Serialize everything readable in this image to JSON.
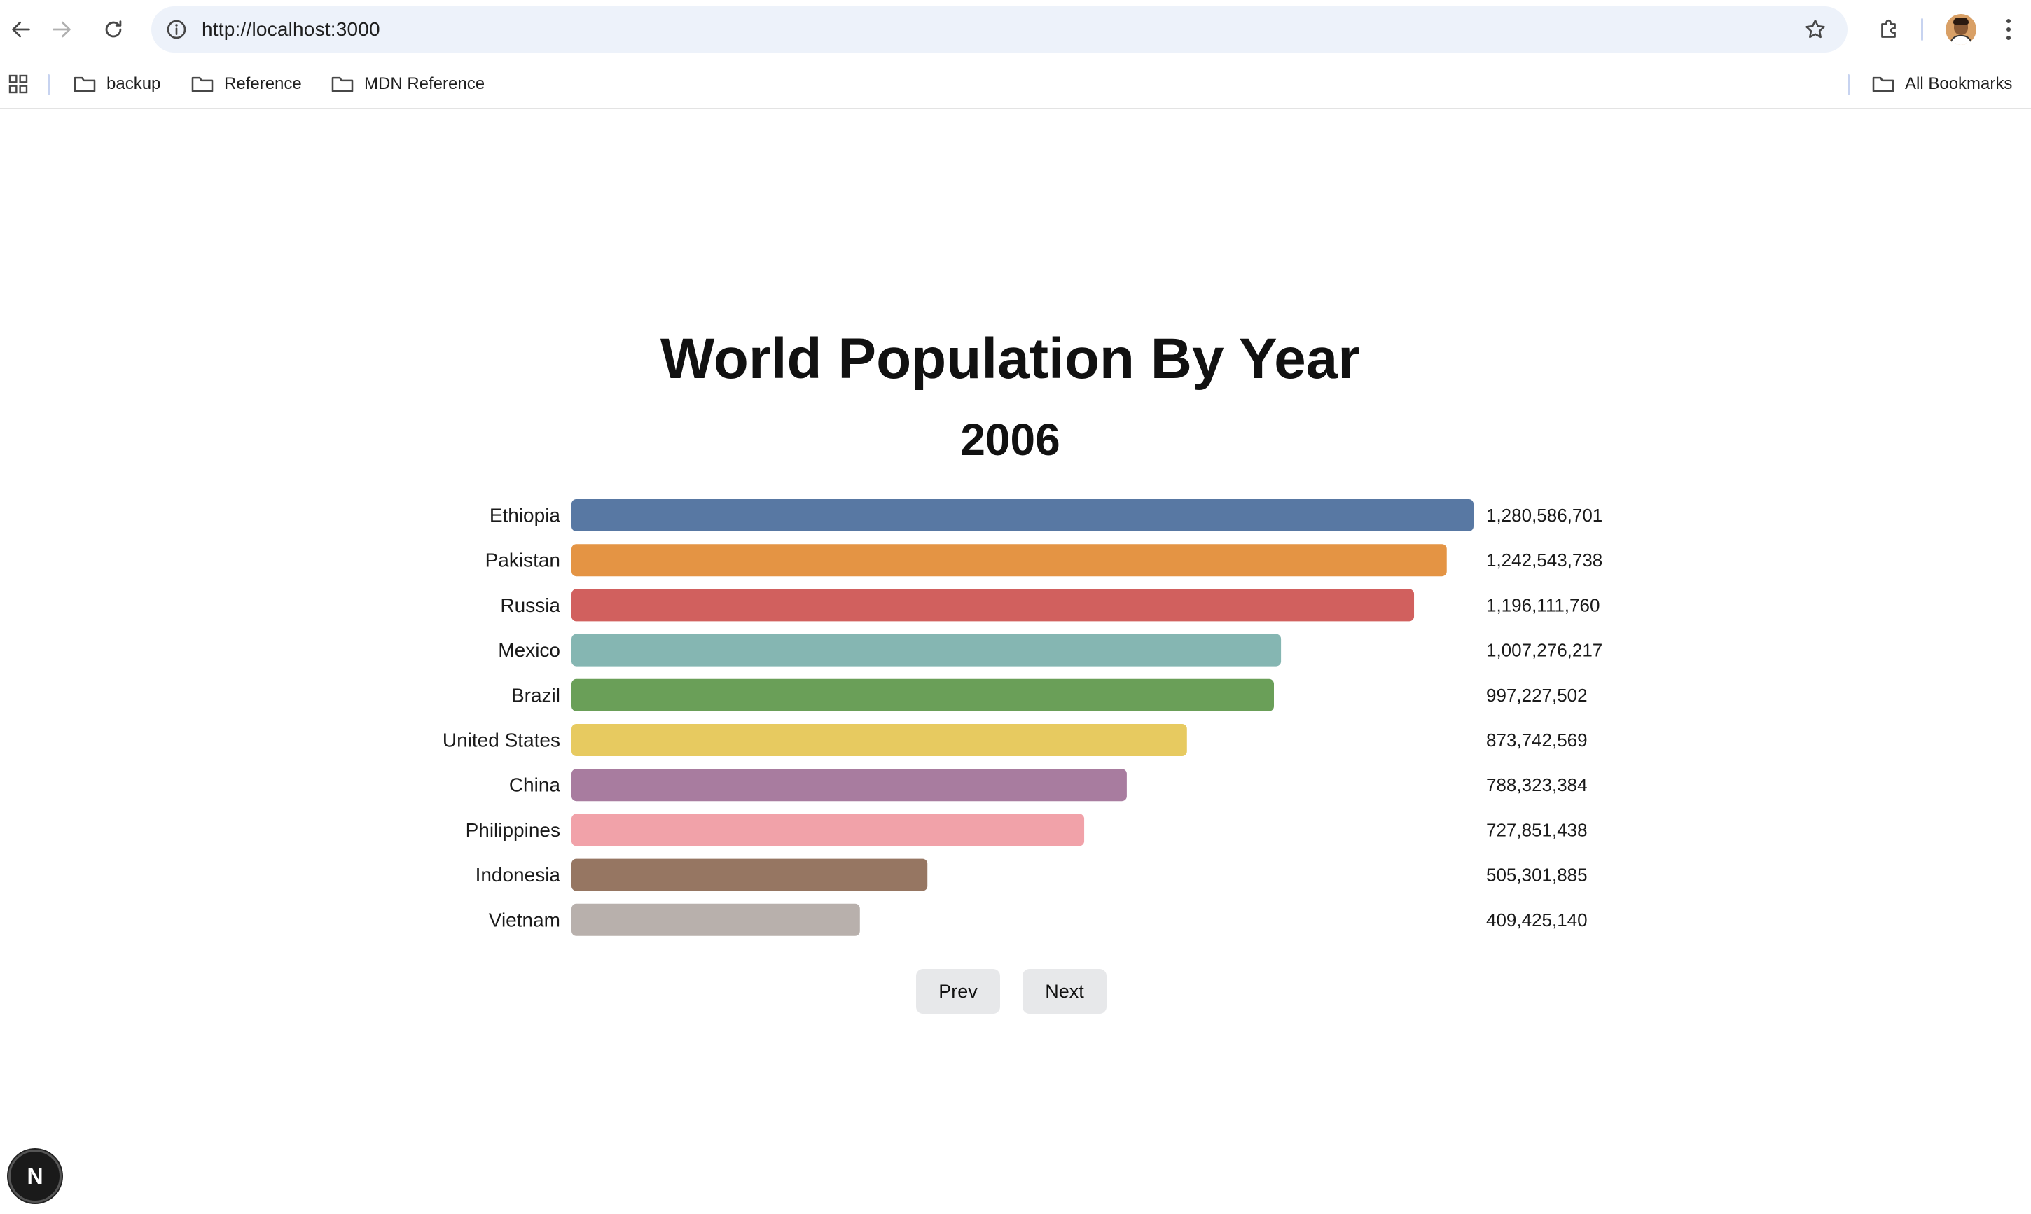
{
  "browser": {
    "url": "http://localhost:3000",
    "bookmarks": [
      "backup",
      "Reference",
      "MDN Reference"
    ],
    "all_bookmarks_label": "All Bookmarks"
  },
  "page": {
    "title": "World Population By Year",
    "year": "2006",
    "prev_label": "Prev",
    "next_label": "Next",
    "logo_letter": "N"
  },
  "chart_data": {
    "type": "bar",
    "orientation": "horizontal",
    "categories": [
      "Ethiopia",
      "Pakistan",
      "Russia",
      "Mexico",
      "Brazil",
      "United States",
      "China",
      "Philippines",
      "Indonesia",
      "Vietnam"
    ],
    "values": [
      1280586701,
      1242543738,
      1196111760,
      1007276217,
      997227502,
      873742569,
      788323384,
      727851438,
      505301885,
      409425140
    ],
    "value_labels": [
      "1,280,586,701",
      "1,242,543,738",
      "1,196,111,760",
      "1,007,276,217",
      "997,227,502",
      "873,742,569",
      "788,323,384",
      "727,851,438",
      "505,301,885",
      "409,425,140"
    ],
    "colors": [
      "#5878a3",
      "#e49444",
      "#d1605e",
      "#85b6b2",
      "#6a9f58",
      "#e7ca60",
      "#a87c9f",
      "#f1a2a9",
      "#967662",
      "#b8b0ac"
    ],
    "title": "World Population By Year",
    "subtitle": "2006"
  }
}
